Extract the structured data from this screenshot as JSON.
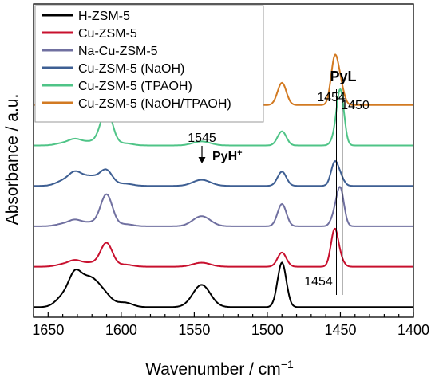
{
  "chart_data": {
    "type": "line",
    "xlabel": "Wavenumber / cm",
    "xlabel_sup": "−1",
    "ylabel": "Absorbance / a.u.",
    "xlim": [
      1660,
      1400
    ],
    "x_reversed": true,
    "x_ticks": [
      1650,
      1600,
      1550,
      1500,
      1450,
      1400
    ],
    "y_ticks_shown": false,
    "ylim": [
      -0.05,
      1.5
    ],
    "grid": false,
    "legend_position": "top-left",
    "peaks_x": [
      1640,
      1632,
      1622,
      1610,
      1597,
      1578,
      1545,
      1490,
      1454,
      1450
    ],
    "series": [
      {
        "name": "H-ZSM-5",
        "color": "#000000",
        "offset": 0.0,
        "y": [
          0.04,
          0.09,
          0.15,
          0.01,
          0.02,
          0.0,
          0.11,
          0.22,
          0.0,
          0.0
        ]
      },
      {
        "name": "Cu-ZSM-5",
        "color": "#c8102e",
        "offset": 0.2,
        "y": [
          0.01,
          0.02,
          0.02,
          0.11,
          0.01,
          0.0,
          0.02,
          0.07,
          0.18,
          0.03
        ]
      },
      {
        "name": "Na-Cu-ZSM-5",
        "color": "#7070a0",
        "offset": 0.4,
        "y": [
          0.01,
          0.02,
          0.02,
          0.15,
          0.01,
          0.0,
          0.05,
          0.11,
          0.05,
          0.18
        ]
      },
      {
        "name": "Cu-ZSM-5 (NaOH)",
        "color": "#3e5f93",
        "offset": 0.6,
        "y": [
          0.02,
          0.04,
          0.05,
          0.06,
          0.01,
          0.0,
          0.03,
          0.07,
          0.11,
          0.04
        ]
      },
      {
        "name": "Cu-ZSM-5 (TPAOH)",
        "color": "#4fc487",
        "offset": 0.8,
        "y": [
          0.01,
          0.02,
          0.02,
          0.17,
          0.01,
          0.0,
          0.02,
          0.07,
          0.03,
          0.27
        ]
      },
      {
        "name": "Cu-ZSM-5 (NaOH/TPAOH)",
        "color": "#d27a22",
        "offset": 1.0,
        "y": [
          0.02,
          0.03,
          0.04,
          0.13,
          0.02,
          0.0,
          0.04,
          0.11,
          0.22,
          0.09
        ]
      }
    ],
    "annotations": {
      "pyl_label": "PyL",
      "pyl_a": "1454",
      "pyl_b": "1450",
      "pyh_num": "1545",
      "pyh_label": "PyH",
      "pyh_sup": "+",
      "bottom_label": "1454"
    }
  }
}
